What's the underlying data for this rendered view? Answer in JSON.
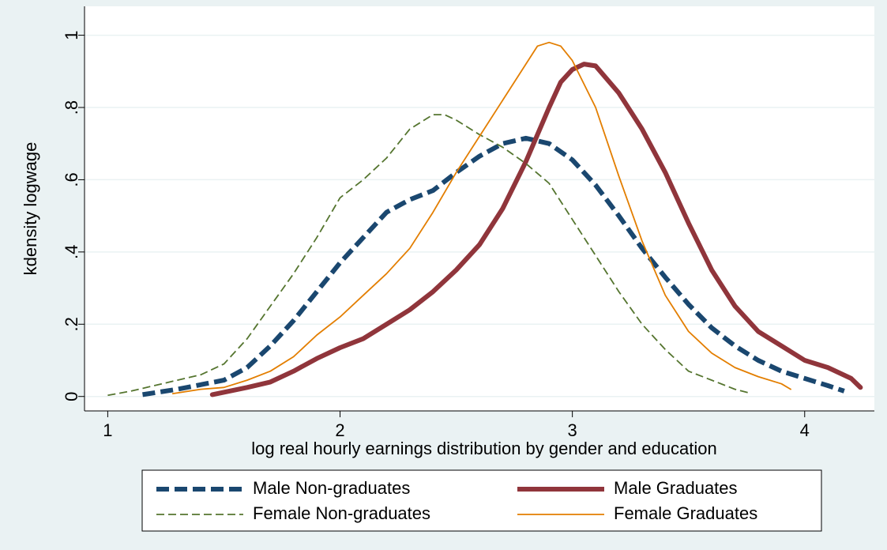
{
  "chart_data": {
    "type": "line",
    "xlabel": "log real hourly earnings distribution by gender and education",
    "ylabel": "kdensity logwage",
    "xlim": [
      0.9,
      4.3
    ],
    "xticks": [
      1,
      2,
      3,
      4
    ],
    "ylim": [
      -0.04,
      1.08
    ],
    "yticks": [
      0,
      {
        "value": 0.2,
        "label": ".2"
      },
      {
        "value": 0.4,
        "label": ".4"
      },
      {
        "value": 0.6,
        "label": ".6"
      },
      {
        "value": 0.8,
        "label": ".8"
      },
      1
    ],
    "grid": true,
    "legend": "bottom",
    "series": [
      {
        "name": "Male Non-graduates",
        "color": "#1a476f",
        "style": "dashed",
        "width": "thick",
        "x": [
          1.15,
          1.3,
          1.5,
          1.6,
          1.7,
          1.8,
          1.9,
          2.0,
          2.1,
          2.2,
          2.3,
          2.4,
          2.5,
          2.6,
          2.7,
          2.8,
          2.9,
          3.0,
          3.1,
          3.2,
          3.3,
          3.4,
          3.5,
          3.6,
          3.7,
          3.8,
          3.9,
          4.0,
          4.1,
          4.17
        ],
        "values": [
          0.005,
          0.02,
          0.045,
          0.08,
          0.14,
          0.21,
          0.29,
          0.37,
          0.44,
          0.51,
          0.545,
          0.57,
          0.62,
          0.665,
          0.7,
          0.715,
          0.7,
          0.655,
          0.585,
          0.5,
          0.41,
          0.33,
          0.255,
          0.19,
          0.14,
          0.1,
          0.07,
          0.05,
          0.03,
          0.015
        ]
      },
      {
        "name": "Male Graduates",
        "color": "#90353b",
        "style": "solid",
        "width": "thick",
        "x": [
          1.45,
          1.6,
          1.7,
          1.8,
          1.9,
          2.0,
          2.1,
          2.2,
          2.3,
          2.4,
          2.5,
          2.6,
          2.7,
          2.8,
          2.9,
          2.95,
          3.0,
          3.05,
          3.1,
          3.2,
          3.3,
          3.4,
          3.5,
          3.6,
          3.7,
          3.8,
          3.9,
          4.0,
          4.1,
          4.2,
          4.24
        ],
        "values": [
          0.005,
          0.025,
          0.04,
          0.07,
          0.105,
          0.135,
          0.16,
          0.2,
          0.24,
          0.29,
          0.35,
          0.42,
          0.52,
          0.65,
          0.8,
          0.87,
          0.905,
          0.92,
          0.915,
          0.84,
          0.74,
          0.62,
          0.48,
          0.35,
          0.25,
          0.18,
          0.14,
          0.1,
          0.08,
          0.05,
          0.025
        ]
      },
      {
        "name": "Female Non-graduates",
        "color": "#55752f",
        "style": "dashed",
        "width": "thin",
        "x": [
          1.0,
          1.1,
          1.2,
          1.3,
          1.4,
          1.5,
          1.6,
          1.7,
          1.8,
          1.9,
          2.0,
          2.1,
          2.2,
          2.3,
          2.4,
          2.45,
          2.5,
          2.6,
          2.7,
          2.8,
          2.9,
          3.0,
          3.1,
          3.2,
          3.3,
          3.4,
          3.5,
          3.6,
          3.7,
          3.76
        ],
        "values": [
          0.003,
          0.015,
          0.03,
          0.045,
          0.06,
          0.09,
          0.16,
          0.25,
          0.34,
          0.44,
          0.55,
          0.6,
          0.66,
          0.74,
          0.78,
          0.78,
          0.765,
          0.725,
          0.69,
          0.645,
          0.59,
          0.49,
          0.39,
          0.29,
          0.2,
          0.13,
          0.07,
          0.045,
          0.02,
          0.01
        ]
      },
      {
        "name": "Female Graduates",
        "color": "#e37e00",
        "style": "solid",
        "width": "thin",
        "x": [
          1.28,
          1.4,
          1.5,
          1.6,
          1.7,
          1.8,
          1.9,
          2.0,
          2.1,
          2.2,
          2.3,
          2.4,
          2.5,
          2.6,
          2.7,
          2.8,
          2.85,
          2.9,
          2.95,
          3.0,
          3.1,
          3.2,
          3.3,
          3.4,
          3.5,
          3.6,
          3.7,
          3.8,
          3.9,
          3.94
        ],
        "values": [
          0.008,
          0.02,
          0.025,
          0.045,
          0.07,
          0.11,
          0.17,
          0.22,
          0.28,
          0.34,
          0.41,
          0.51,
          0.62,
          0.72,
          0.82,
          0.92,
          0.97,
          0.98,
          0.97,
          0.93,
          0.8,
          0.61,
          0.43,
          0.28,
          0.18,
          0.12,
          0.08,
          0.055,
          0.035,
          0.02
        ]
      }
    ]
  }
}
